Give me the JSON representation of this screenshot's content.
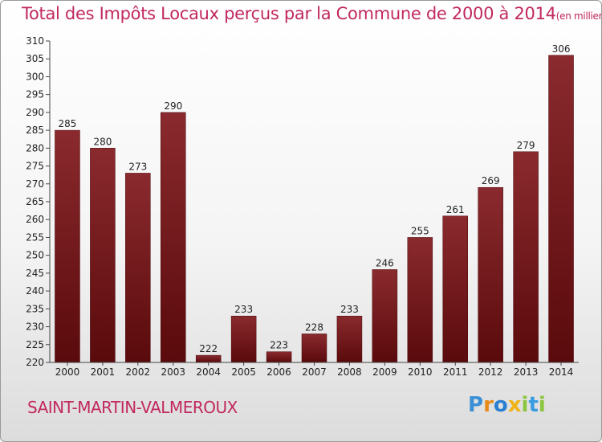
{
  "header": {
    "title": "Total des Impôts Locaux perçus par la Commune de 2000 à 2014",
    "unit": "(en milliers d'€)"
  },
  "footer": {
    "commune": "SAINT-MARTIN-VALMEROUX",
    "brand": [
      "P",
      "r",
      "o",
      "x",
      "i",
      "t",
      "i"
    ]
  },
  "chart_data": {
    "type": "bar",
    "title": "Total des Impôts Locaux perçus par la Commune de 2000 à 2014",
    "subtitle": "(en milliers d'€)",
    "xlabel": "",
    "ylabel": "",
    "categories": [
      "2000",
      "2001",
      "2002",
      "2003",
      "2004",
      "2005",
      "2006",
      "2007",
      "2008",
      "2009",
      "2010",
      "2011",
      "2012",
      "2013",
      "2014"
    ],
    "values": [
      285,
      280,
      273,
      290,
      222,
      233,
      223,
      228,
      233,
      246,
      255,
      261,
      269,
      279,
      306
    ],
    "ylim": [
      220,
      310
    ],
    "ytick_step": 5,
    "grid": false,
    "bar_color_top": "#8a2a2e",
    "bar_color_bottom": "#5a0a0c",
    "title_color": "#c1285f"
  }
}
